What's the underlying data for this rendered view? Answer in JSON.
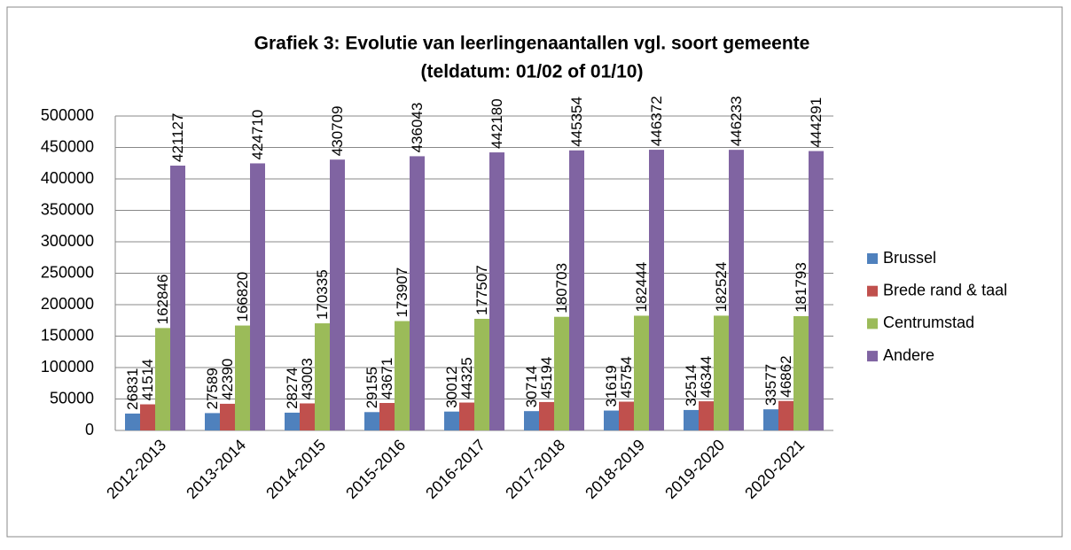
{
  "chart_data": {
    "type": "bar",
    "title": "Grafiek 3: Evolutie van leerlingenaantallen vgl. soort gemeente",
    "subtitle": "(teldatum: 01/02 of 01/10)",
    "categories": [
      "2012-2013",
      "2013-2014",
      "2014-2015",
      "2015-2016",
      "2016-2017",
      "2017-2018",
      "2018-2019",
      "2019-2020",
      "2020-2021"
    ],
    "series": [
      {
        "name": "Brussel",
        "color": "#4f81bd",
        "values": [
          26831,
          27589,
          28274,
          29155,
          30012,
          30714,
          31619,
          32514,
          33577
        ]
      },
      {
        "name": "Brede rand & taal",
        "color": "#c0504d",
        "values": [
          41514,
          42390,
          43003,
          43671,
          44325,
          45194,
          45754,
          46344,
          46862
        ]
      },
      {
        "name": "Centrumstad",
        "color": "#9bbb59",
        "values": [
          162846,
          166820,
          170335,
          173907,
          177507,
          180703,
          182444,
          182524,
          181793
        ]
      },
      {
        "name": "Andere",
        "color": "#8064a2",
        "values": [
          421127,
          424710,
          430709,
          436043,
          442180,
          445354,
          446372,
          446233,
          444291
        ]
      }
    ],
    "ylim": [
      0,
      500000
    ],
    "yticks": [
      0,
      50000,
      100000,
      150000,
      200000,
      250000,
      300000,
      350000,
      400000,
      450000,
      500000
    ],
    "grid": true,
    "legend": "right"
  }
}
